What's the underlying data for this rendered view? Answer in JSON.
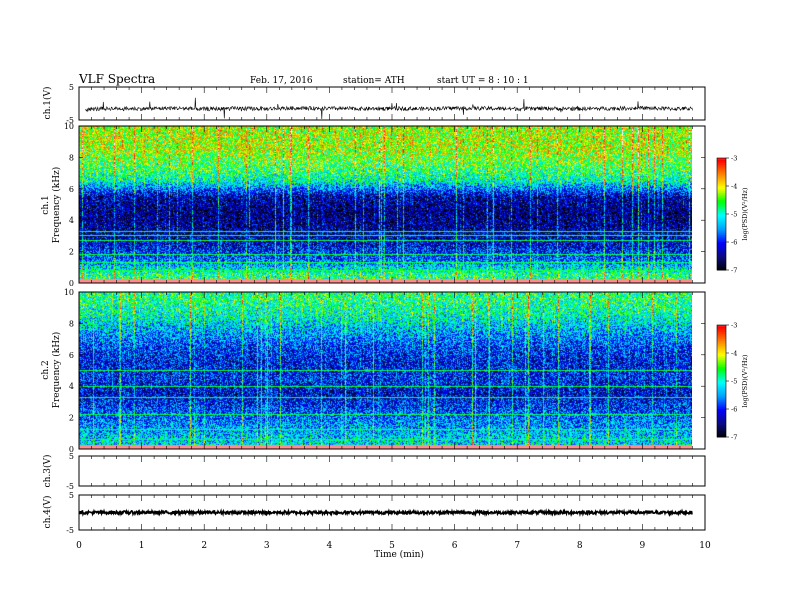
{
  "header": {
    "title": "VLF Spectra",
    "date": "Feb. 17, 2016",
    "station": "station= ATH",
    "start": "start UT = 8 : 10 : 1"
  },
  "colors": {
    "spectrogram_scale": [
      "#000000",
      "#0a0a80",
      "#0000ff",
      "#00a0ff",
      "#00ffff",
      "#00ff00",
      "#ffff00",
      "#ff8000",
      "#ff0000",
      "#ffffff"
    ]
  },
  "colorbars": [
    {
      "label": "log(PSD)(V²/Hz)",
      "ticks": [
        "-3",
        "-4",
        "-5",
        "-6",
        "-7"
      ]
    },
    {
      "label": "log(PSD)(V²/Hz)",
      "ticks": [
        "-3",
        "-4",
        "-5",
        "-6",
        "-7"
      ]
    }
  ],
  "chart_data": [
    {
      "type": "line",
      "panel": "ch1-waveform",
      "ylabel": "ch.1(V)",
      "yticks": [
        "5",
        "-5"
      ],
      "ylim": [
        -5,
        5
      ],
      "xlim": [
        0,
        10
      ],
      "x": [
        0.1,
        0.5,
        1.0,
        1.5,
        2.0,
        2.5,
        3.0,
        3.5,
        4.0,
        4.5,
        5.0,
        5.5,
        6.0,
        6.5,
        7.0,
        7.5,
        8.0,
        8.5,
        9.0,
        9.5,
        9.8
      ],
      "values": [
        -1.8,
        -1.5,
        -1.6,
        -1.4,
        -1.7,
        -1.5,
        -1.6,
        -1.4,
        -1.5,
        -1.6,
        -1.5,
        -1.6,
        -1.4,
        -1.5,
        -1.6,
        -1.5,
        -1.6,
        -1.5,
        -1.4,
        -1.6,
        -1.5
      ]
    },
    {
      "type": "heatmap",
      "panel": "ch1-spectrogram",
      "ylabel_top": "ch.1",
      "ylabel": "Frequency (kHz)",
      "yticks": [
        "10",
        "8",
        "6",
        "4",
        "2",
        "0"
      ],
      "ylim": [
        0,
        10
      ],
      "xlim": [
        0,
        10
      ],
      "colorbar_range": [
        -7,
        -3
      ],
      "freq_khz": [
        0.5,
        1.5,
        2.5,
        3.5,
        4.5,
        5.5,
        6.5,
        7.5,
        8.5,
        9.5
      ],
      "mean_log_psd": [
        -5.0,
        -5.9,
        -6.3,
        -6.5,
        -6.6,
        -6.4,
        -5.2,
        -4.8,
        -4.5,
        -4.5
      ],
      "tone_lines_khz": [
        0.2,
        0.8,
        1.3,
        1.8,
        2.7,
        3.0,
        3.3
      ]
    },
    {
      "type": "heatmap",
      "panel": "ch2-spectrogram",
      "ylabel_top": "ch.2",
      "ylabel": "Frequency (kHz)",
      "yticks": [
        "10",
        "8",
        "6",
        "4",
        "2",
        "0"
      ],
      "ylim": [
        0,
        10
      ],
      "xlim": [
        0,
        10
      ],
      "colorbar_range": [
        -7,
        -3
      ],
      "freq_khz": [
        0.5,
        1.5,
        2.5,
        3.5,
        4.5,
        5.5,
        6.5,
        7.5,
        8.5,
        9.5
      ],
      "mean_log_psd": [
        -5.4,
        -5.7,
        -6.0,
        -6.3,
        -6.1,
        -6.2,
        -6.0,
        -5.6,
        -5.2,
        -5.0
      ],
      "tone_lines_khz": [
        0.6,
        1.2,
        2.2,
        3.3,
        4.0,
        5.0
      ]
    },
    {
      "type": "line",
      "panel": "ch3-waveform",
      "ylabel": "ch.3(V)",
      "yticks": [
        "5",
        "-5"
      ],
      "ylim": [
        -5,
        5
      ],
      "xlim": [
        0,
        10
      ],
      "x": [
        0.0,
        9.8
      ],
      "values": [
        5.0,
        5.0
      ]
    },
    {
      "type": "line",
      "panel": "ch4-waveform",
      "ylabel": "ch.4(V)",
      "yticks": [
        "5",
        "-5"
      ],
      "ylim": [
        -5,
        5
      ],
      "xlim": [
        0,
        10
      ],
      "x": [
        0.0,
        9.8
      ],
      "values": [
        0.0,
        0.0
      ]
    }
  ],
  "x_axis": {
    "label": "Time (min)",
    "ticks": [
      "0",
      "1",
      "2",
      "3",
      "4",
      "5",
      "6",
      "7",
      "8",
      "9",
      "10"
    ]
  }
}
